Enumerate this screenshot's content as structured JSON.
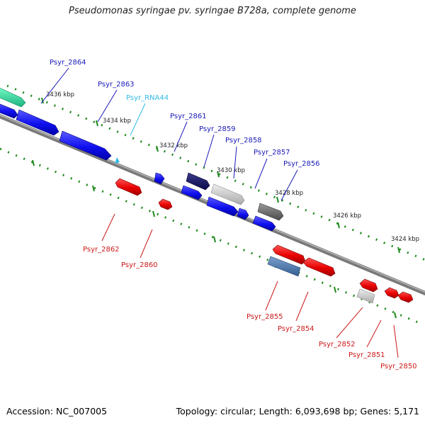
{
  "title": "Pseudomonas syringae pv. syringae B728a, complete genome",
  "footer": {
    "accession": "Accession: NC_007005",
    "summary": "Topology: circular; Length: 6,093,698 bp; Genes: 5,171"
  },
  "colors": {
    "backbone": "#7a7a7a",
    "tick": "#1d8a1d",
    "ruler_label": "#222222",
    "forward_label": "#1a1ab8",
    "reverse_label": "#cc1a1a",
    "rna_label": "#33bbe6"
  },
  "ruler_labels": [
    "3436 kbp",
    "3434 kbp",
    "3432 kbp",
    "3430 kbp",
    "3428 kbp",
    "3426 kbp",
    "3424 kbp"
  ],
  "forward_genes": [
    {
      "name": "Psyr_2864",
      "type": "forward"
    },
    {
      "name": "Psyr_2863",
      "type": "forward"
    },
    {
      "name": "Psyr_RNA44",
      "type": "rna"
    },
    {
      "name": "Psyr_2861",
      "type": "forward"
    },
    {
      "name": "Psyr_2859",
      "type": "forward"
    },
    {
      "name": "Psyr_2858",
      "type": "forward"
    },
    {
      "name": "Psyr_2857",
      "type": "forward"
    },
    {
      "name": "Psyr_2856",
      "type": "forward"
    }
  ],
  "reverse_genes": [
    {
      "name": "Psyr_2862",
      "type": "reverse"
    },
    {
      "name": "Psyr_2860",
      "type": "reverse"
    },
    {
      "name": "Psyr_2855",
      "type": "reverse"
    },
    {
      "name": "Psyr_2854",
      "type": "reverse"
    },
    {
      "name": "Psyr_2852",
      "type": "reverse"
    },
    {
      "name": "Psyr_2851",
      "type": "reverse"
    },
    {
      "name": "Psyr_2850",
      "type": "reverse"
    }
  ]
}
